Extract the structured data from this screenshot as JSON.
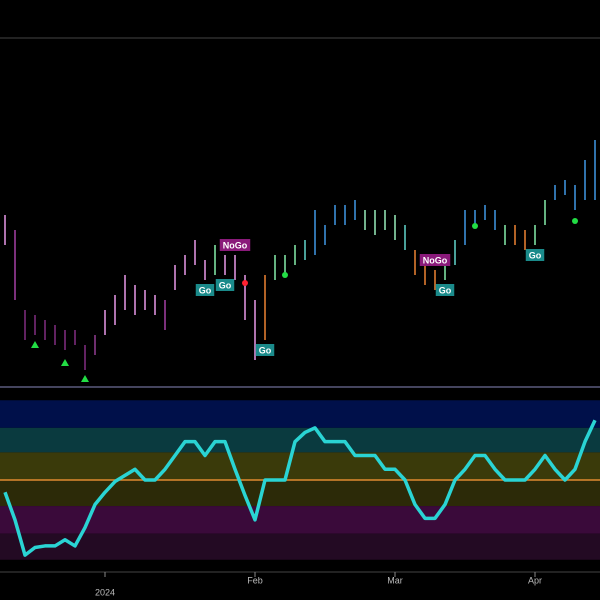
{
  "chart_data": {
    "type": "ohlc",
    "categories": [
      null,
      null,
      null,
      null,
      null,
      null,
      null,
      null,
      null,
      null,
      "2024",
      null,
      null,
      null,
      null,
      null,
      null,
      null,
      null,
      null,
      null,
      null,
      null,
      null,
      null,
      "Feb",
      null,
      null,
      null,
      null,
      null,
      null,
      null,
      null,
      null,
      null,
      null,
      null,
      null,
      "Mar",
      null,
      null,
      null,
      null,
      null,
      null,
      null,
      null,
      null,
      null,
      null,
      null,
      null,
      "Apr",
      null,
      null,
      null,
      null,
      null,
      null
    ],
    "high": [
      170,
      155,
      75,
      70,
      65,
      60,
      55,
      55,
      40,
      50,
      75,
      90,
      110,
      100,
      95,
      90,
      85,
      120,
      130,
      145,
      125,
      140,
      130,
      130,
      110,
      85,
      110,
      130,
      130,
      140,
      145,
      175,
      160,
      180,
      180,
      185,
      175,
      175,
      175,
      170,
      160,
      135,
      120,
      115,
      125,
      145,
      175,
      175,
      180,
      175,
      160,
      160,
      155,
      160,
      185,
      200,
      205,
      200,
      225,
      245
    ],
    "low": [
      140,
      85,
      45,
      50,
      45,
      40,
      35,
      40,
      15,
      30,
      50,
      60,
      75,
      70,
      75,
      70,
      55,
      95,
      110,
      120,
      105,
      110,
      110,
      105,
      65,
      25,
      45,
      105,
      110,
      120,
      125,
      130,
      140,
      160,
      160,
      165,
      155,
      150,
      155,
      145,
      135,
      110,
      100,
      95,
      105,
      120,
      140,
      160,
      165,
      155,
      140,
      140,
      135,
      140,
      160,
      185,
      190,
      175,
      185,
      185
    ],
    "bar_colors": [
      "#d98fd9",
      "#9b3d9b",
      "#7a2a7a",
      "#7a2a7a",
      "#7a2a7a",
      "#7a2a7a",
      "#7a2a7a",
      "#7a2a7a",
      "#7a2a7a",
      "#8a3a8a",
      "#d98fd9",
      "#d98fd9",
      "#d98fd9",
      "#d98fd9",
      "#d98fd9",
      "#d98fd9",
      "#9b3d9b",
      "#d98fd9",
      "#d98fd9",
      "#d98fd9",
      "#d98fd9",
      "#7ee0a0",
      "#d98fd9",
      "#d98fd9",
      "#d98fd9",
      "#d98fd9",
      "#e07b30",
      "#7ee0a0",
      "#7ee0a0",
      "#7ee0a0",
      "#5cc8c0",
      "#3d8fd8",
      "#3d8fd8",
      "#3d8fd8",
      "#3d8fd8",
      "#3d8fd8",
      "#8fe0b0",
      "#8fe0b0",
      "#8fe0b0",
      "#8fe0b0",
      "#5cc8c0",
      "#e07b30",
      "#e07b30",
      "#e07b30",
      "#7ee0a0",
      "#5cc8c0",
      "#3d8fd8",
      "#3d8fd8",
      "#3d8fd8",
      "#3d8fd8",
      "#7ee0a0",
      "#e07b30",
      "#e07b30",
      "#7ee0a0",
      "#7ee0a0",
      "#3d8fd8",
      "#3d8fd8",
      "#3d8fd8",
      "#3d8fd8",
      "#3d8fd8"
    ],
    "ylim": [
      0,
      350
    ],
    "annotations": [
      {
        "text": "Go",
        "index": 20,
        "position": "below",
        "color": "#1a8a8a"
      },
      {
        "text": "Go",
        "index": 22,
        "position": "below",
        "color": "#1a8a8a"
      },
      {
        "text": "NoGo",
        "index": 23,
        "position": "above",
        "color": "#8a1a7a"
      },
      {
        "text": "Go",
        "index": 26,
        "position": "below",
        "color": "#1a8a8a"
      },
      {
        "text": "NoGo",
        "index": 43,
        "position": "above",
        "color": "#8a1a7a"
      },
      {
        "text": "Go",
        "index": 44,
        "position": "below",
        "color": "#1a8a8a"
      },
      {
        "text": "Go",
        "index": 53,
        "position": "below",
        "color": "#1a8a8a"
      }
    ],
    "markers": [
      {
        "index": 3,
        "value": 40,
        "shape": "triangle",
        "color": "#22dd44"
      },
      {
        "index": 6,
        "value": 22,
        "shape": "triangle",
        "color": "#22dd44"
      },
      {
        "index": 8,
        "value": 6,
        "shape": "triangle",
        "color": "#22dd44"
      },
      {
        "index": 24,
        "value": 102,
        "shape": "dot",
        "color": "#ff2030"
      },
      {
        "index": 28,
        "value": 110,
        "shape": "dot",
        "color": "#22dd44"
      },
      {
        "index": 47,
        "value": 159,
        "shape": "dot",
        "color": "#22dd44"
      },
      {
        "index": 57,
        "value": 164,
        "shape": "dot",
        "color": "#22dd44"
      }
    ],
    "oscillator": {
      "color": "#2ad4d4",
      "values": [
        -0.8,
        -2.6,
        -4.9,
        -4.4,
        -4.3,
        -4.3,
        -3.9,
        -4.3,
        -3.1,
        -1.6,
        -0.8,
        -0.1,
        0.3,
        0.7,
        0,
        0,
        0.7,
        1.6,
        2.5,
        2.5,
        1.6,
        2.5,
        2.5,
        0.7,
        -1.0,
        -2.6,
        0,
        0,
        0,
        2.5,
        3.1,
        3.4,
        2.5,
        2.5,
        2.5,
        1.6,
        1.6,
        1.6,
        0.7,
        0.7,
        0,
        -1.6,
        -2.5,
        -2.5,
        -1.6,
        0,
        0.7,
        1.6,
        1.6,
        0.7,
        0,
        0,
        0,
        0.7,
        1.6,
        0.7,
        0,
        0.7,
        2.5,
        3.9
      ],
      "ylim": [
        -6,
        6
      ],
      "bands": [
        {
          "from": 3.4,
          "to": 5.2,
          "color": "#00104a"
        },
        {
          "from": 1.8,
          "to": 3.4,
          "color": "#0a3a3f"
        },
        {
          "from": 0,
          "to": 1.8,
          "color": "#3a3a0a"
        },
        {
          "from": -1.7,
          "to": 0,
          "color": "#2c2a08"
        },
        {
          "from": -3.5,
          "to": -1.7,
          "color": "#3a0a3a"
        },
        {
          "from": -5.2,
          "to": -3.5,
          "color": "#230a23"
        }
      ],
      "zero_color": "#e08a30"
    }
  }
}
